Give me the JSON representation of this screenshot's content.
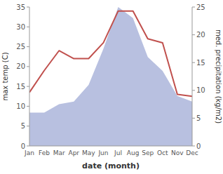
{
  "chart_data": {
    "type": "line",
    "categories": [
      "Jan",
      "Feb",
      "Mar",
      "Apr",
      "May",
      "Jun",
      "Jul",
      "Aug",
      "Sep",
      "Oct",
      "Nov",
      "Dec"
    ],
    "xlabel": "date (month)",
    "ylabel": "max temp (C)",
    "y2label": "med. precipitation (kg/m2)",
    "series": [
      {
        "type": "area",
        "axis": "y2",
        "color": "#b8c0e0",
        "values": [
          6.0,
          6.0,
          7.5,
          8.0,
          11.0,
          17.5,
          25.0,
          23.0,
          16.0,
          13.5,
          9.0,
          8.0
        ]
      },
      {
        "type": "line",
        "color": "#c0504d",
        "values": [
          13.5,
          19.0,
          24.0,
          22.0,
          22.0,
          26.0,
          34.0,
          34.0,
          27.0,
          26.0,
          13.0,
          12.5
        ]
      }
    ],
    "ylim": [
      0,
      35
    ],
    "yticks": [
      0,
      5,
      10,
      15,
      20,
      25,
      30,
      35
    ],
    "y2lim": [
      0,
      25
    ],
    "y2ticks": [
      0,
      5,
      10,
      15,
      20,
      25
    ],
    "grid": false
  }
}
